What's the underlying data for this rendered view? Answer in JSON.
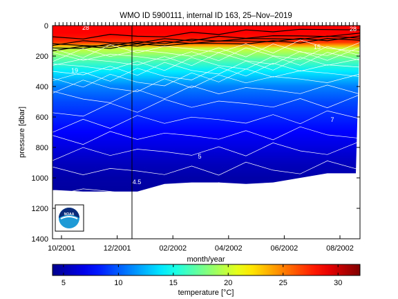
{
  "chart_data": {
    "type": "heatmap",
    "title": "WMO ID 5900111, internal ID 163, 25–Nov–2019",
    "xlabel": "month/year",
    "ylabel": "pressure [dbar]",
    "x_ticks": [
      "10/2001",
      "12/2001",
      "02/2002",
      "04/2002",
      "06/2002",
      "08/2002"
    ],
    "y_ticks": [
      "0",
      "200",
      "400",
      "600",
      "800",
      "1000",
      "1200",
      "1400"
    ],
    "ylim": [
      1400,
      0
    ],
    "colorbar": {
      "label": "temperature [°C]",
      "ticks": [
        "5",
        "10",
        "15",
        "20",
        "25",
        "30"
      ],
      "range": [
        4,
        32
      ]
    },
    "x": [
      "2001-10-01",
      "2001-11-01",
      "2001-12-01",
      "2002-01-01",
      "2002-02-01",
      "2002-03-01",
      "2002-04-01",
      "2002-05-01",
      "2002-06-01",
      "2002-07-01",
      "2002-08-01",
      "2002-09-01"
    ],
    "profile_depth_max": [
      1080,
      1090,
      1090,
      1090,
      1040,
      1030,
      1030,
      1040,
      1030,
      1000,
      970,
      970
    ],
    "temperature_profile": {
      "pressure": [
        0,
        50,
        80,
        110,
        130,
        150,
        180,
        220,
        300,
        400,
        500,
        600,
        700,
        800,
        900,
        1000,
        1100
      ],
      "temperature": [
        28.5,
        28.5,
        28.0,
        27.0,
        24.0,
        20.0,
        19.0,
        17.0,
        14.0,
        11.0,
        9.5,
        8.5,
        7.5,
        6.5,
        5.5,
        4.8,
        4.5
      ]
    },
    "contour_labels": [
      "28",
      "19",
      "7",
      "5",
      "4.5",
      "28",
      "15"
    ],
    "marker_x": "2002-01-01"
  },
  "colors": {
    "warm": "#ff3a00",
    "cold": "#00008c"
  },
  "logo": {
    "name": "noaa-logo",
    "text": "NOAA"
  }
}
